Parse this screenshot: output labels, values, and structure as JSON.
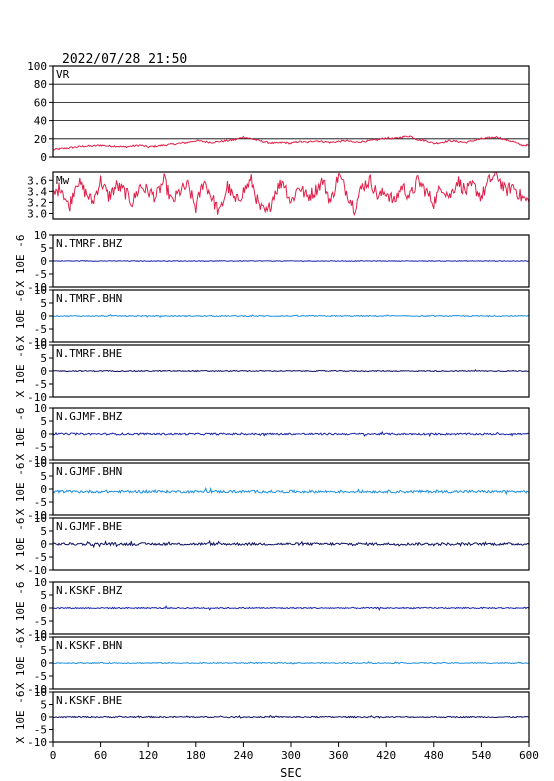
{
  "header": {
    "datetime": "2022/07/28 21:50"
  },
  "colors": {
    "vr_line": "#e0204a",
    "mw_line": "#e0204a",
    "bhz_trace": "#1a24a8",
    "bhn_trace": "#1e90e0",
    "bhe_trace": "#101060",
    "frame": "#000000",
    "grid": "#000000"
  },
  "chart_data": [
    {
      "type": "line",
      "label": "VR",
      "ylim": [
        0,
        100
      ],
      "yticks": [
        0,
        20,
        40,
        60,
        80,
        100
      ],
      "ytick_labels": [
        "0",
        "20",
        "40",
        "60",
        "80",
        "100"
      ],
      "grid": true,
      "series": [
        {
          "x": [
            0,
            10,
            20,
            30,
            40,
            50,
            60,
            70,
            80,
            90,
            100,
            110,
            120,
            130,
            140,
            150,
            160,
            170,
            180,
            190,
            200,
            210,
            220,
            230,
            240,
            250,
            260,
            270,
            280,
            290,
            300,
            310,
            320,
            330,
            340,
            350,
            360,
            370,
            380,
            390,
            400,
            410,
            420,
            430,
            440,
            450,
            460,
            470,
            480,
            490,
            500,
            510,
            520,
            530,
            540,
            550,
            560,
            570,
            580,
            590,
            600
          ],
          "values": [
            8,
            9,
            10,
            11,
            12,
            12,
            13,
            12,
            12,
            11,
            12,
            13,
            11,
            12,
            13,
            14,
            15,
            16,
            18,
            17,
            16,
            17,
            18,
            19,
            22,
            20,
            18,
            16,
            15,
            16,
            15,
            17,
            16,
            18,
            17,
            16,
            17,
            18,
            16,
            17,
            18,
            19,
            21,
            20,
            22,
            23,
            19,
            18,
            15,
            16,
            18,
            17,
            16,
            18,
            20,
            21,
            22,
            19,
            17,
            13,
            13
          ]
        }
      ]
    },
    {
      "type": "line",
      "label": "Mw",
      "ylim": [
        2.9,
        3.75
      ],
      "yticks": [
        3.0,
        3.2,
        3.4,
        3.6
      ],
      "ytick_labels": [
        "3.0",
        "3.2",
        "3.4",
        "3.6"
      ],
      "grid": false,
      "series": [
        {
          "x": [
            0,
            10,
            20,
            30,
            40,
            50,
            60,
            70,
            80,
            90,
            100,
            110,
            120,
            130,
            140,
            150,
            160,
            170,
            180,
            190,
            200,
            210,
            220,
            230,
            240,
            250,
            260,
            270,
            280,
            290,
            300,
            310,
            320,
            330,
            340,
            350,
            360,
            370,
            380,
            390,
            400,
            410,
            420,
            430,
            440,
            450,
            460,
            470,
            480,
            490,
            500,
            510,
            520,
            530,
            540,
            550,
            560,
            570,
            580,
            590,
            600
          ],
          "values": [
            3.3,
            3.5,
            3.1,
            3.6,
            3.4,
            3.2,
            3.6,
            3.3,
            3.5,
            3.4,
            3.2,
            3.5,
            3.4,
            3.3,
            3.6,
            3.2,
            3.4,
            3.5,
            3.1,
            3.6,
            3.3,
            3.0,
            3.5,
            3.2,
            3.4,
            3.6,
            3.1,
            3.0,
            3.4,
            3.6,
            3.2,
            3.5,
            3.3,
            3.4,
            3.6,
            3.2,
            3.7,
            3.4,
            3.1,
            3.5,
            3.6,
            3.3,
            3.4,
            3.2,
            3.5,
            3.3,
            3.6,
            3.4,
            3.2,
            3.5,
            3.3,
            3.6,
            3.4,
            3.5,
            3.3,
            3.6,
            3.7,
            3.4,
            3.5,
            3.3,
            3.2
          ]
        }
      ]
    },
    {
      "type": "line",
      "label": "N.TMRF.BHZ",
      "channel": "bhz",
      "ylim": [
        -10,
        10
      ],
      "yticks": [
        -10,
        -5,
        0,
        5,
        10
      ],
      "ytick_labels": [
        "-10",
        "-5",
        "0",
        "5",
        "10"
      ],
      "ylabel": "X 10E -6",
      "amplitude": 0.12
    },
    {
      "type": "line",
      "label": "N.TMRF.BHN",
      "channel": "bhn",
      "ylim": [
        -10,
        10
      ],
      "yticks": [
        -10,
        -5,
        0,
        5,
        10
      ],
      "ytick_labels": [
        "-10",
        "-5",
        "0",
        "5",
        "10"
      ],
      "ylabel": "X 10E -6",
      "amplitude": 0.2
    },
    {
      "type": "line",
      "label": "N.TMRF.BHE",
      "channel": "bhe",
      "ylim": [
        -10,
        10
      ],
      "yticks": [
        -10,
        -5,
        0,
        5,
        10
      ],
      "ytick_labels": [
        "-10",
        "-5",
        "0",
        "5",
        "10"
      ],
      "ylabel": "X 10E -6",
      "amplitude": 0.2
    },
    {
      "type": "line",
      "label": "N.GJMF.BHZ",
      "channel": "bhz",
      "ylim": [
        -10,
        10
      ],
      "yticks": [
        -10,
        -5,
        0,
        5,
        10
      ],
      "ytick_labels": [
        "-10",
        "-5",
        "0",
        "5",
        "10"
      ],
      "ylabel": "X 10E -6",
      "amplitude": 0.35
    },
    {
      "type": "line",
      "label": "N.GJMF.BHN",
      "channel": "bhn",
      "ylim": [
        -10,
        10
      ],
      "yticks": [
        -10,
        -5,
        0,
        5,
        10
      ],
      "ytick_labels": [
        "-10",
        "-5",
        "0",
        "5",
        "10"
      ],
      "ylabel": "X 10E -6",
      "amplitude": 0.5,
      "offset": -1
    },
    {
      "type": "line",
      "label": "N.GJMF.BHE",
      "channel": "bhe",
      "ylim": [
        -10,
        10
      ],
      "yticks": [
        -10,
        -5,
        0,
        5,
        10
      ],
      "ytick_labels": [
        "-10",
        "-5",
        "0",
        "5",
        "10"
      ],
      "ylabel": "X 10E -6",
      "amplitude": 0.5
    },
    {
      "type": "line",
      "label": "N.KSKF.BHZ",
      "channel": "bhz",
      "ylim": [
        -10,
        10
      ],
      "yticks": [
        -10,
        -5,
        0,
        5,
        10
      ],
      "ytick_labels": [
        "-10",
        "-5",
        "0",
        "5",
        "10"
      ],
      "ylabel": "X 10E -6",
      "amplitude": 0.25
    },
    {
      "type": "line",
      "label": "N.KSKF.BHN",
      "channel": "bhn",
      "ylim": [
        -10,
        10
      ],
      "yticks": [
        -10,
        -5,
        0,
        5,
        10
      ],
      "ytick_labels": [
        "-10",
        "-5",
        "0",
        "5",
        "10"
      ],
      "ylabel": "X 10E -6",
      "amplitude": 0.2
    },
    {
      "type": "line",
      "label": "N.KSKF.BHE",
      "channel": "bhe",
      "ylim": [
        -10,
        10
      ],
      "yticks": [
        -10,
        -5,
        0,
        5,
        10
      ],
      "ytick_labels": [
        "-10",
        "-5",
        "0",
        "5",
        "10"
      ],
      "ylabel": "X 10E -6",
      "amplitude": 0.25
    }
  ],
  "x_axis": {
    "label": "SEC",
    "xlim": [
      0,
      600
    ],
    "ticks": [
      0,
      60,
      120,
      180,
      240,
      300,
      360,
      420,
      480,
      540,
      600
    ],
    "tick_labels": [
      "0",
      "60",
      "120",
      "180",
      "240",
      "300",
      "360",
      "420",
      "480",
      "540",
      "600"
    ]
  }
}
